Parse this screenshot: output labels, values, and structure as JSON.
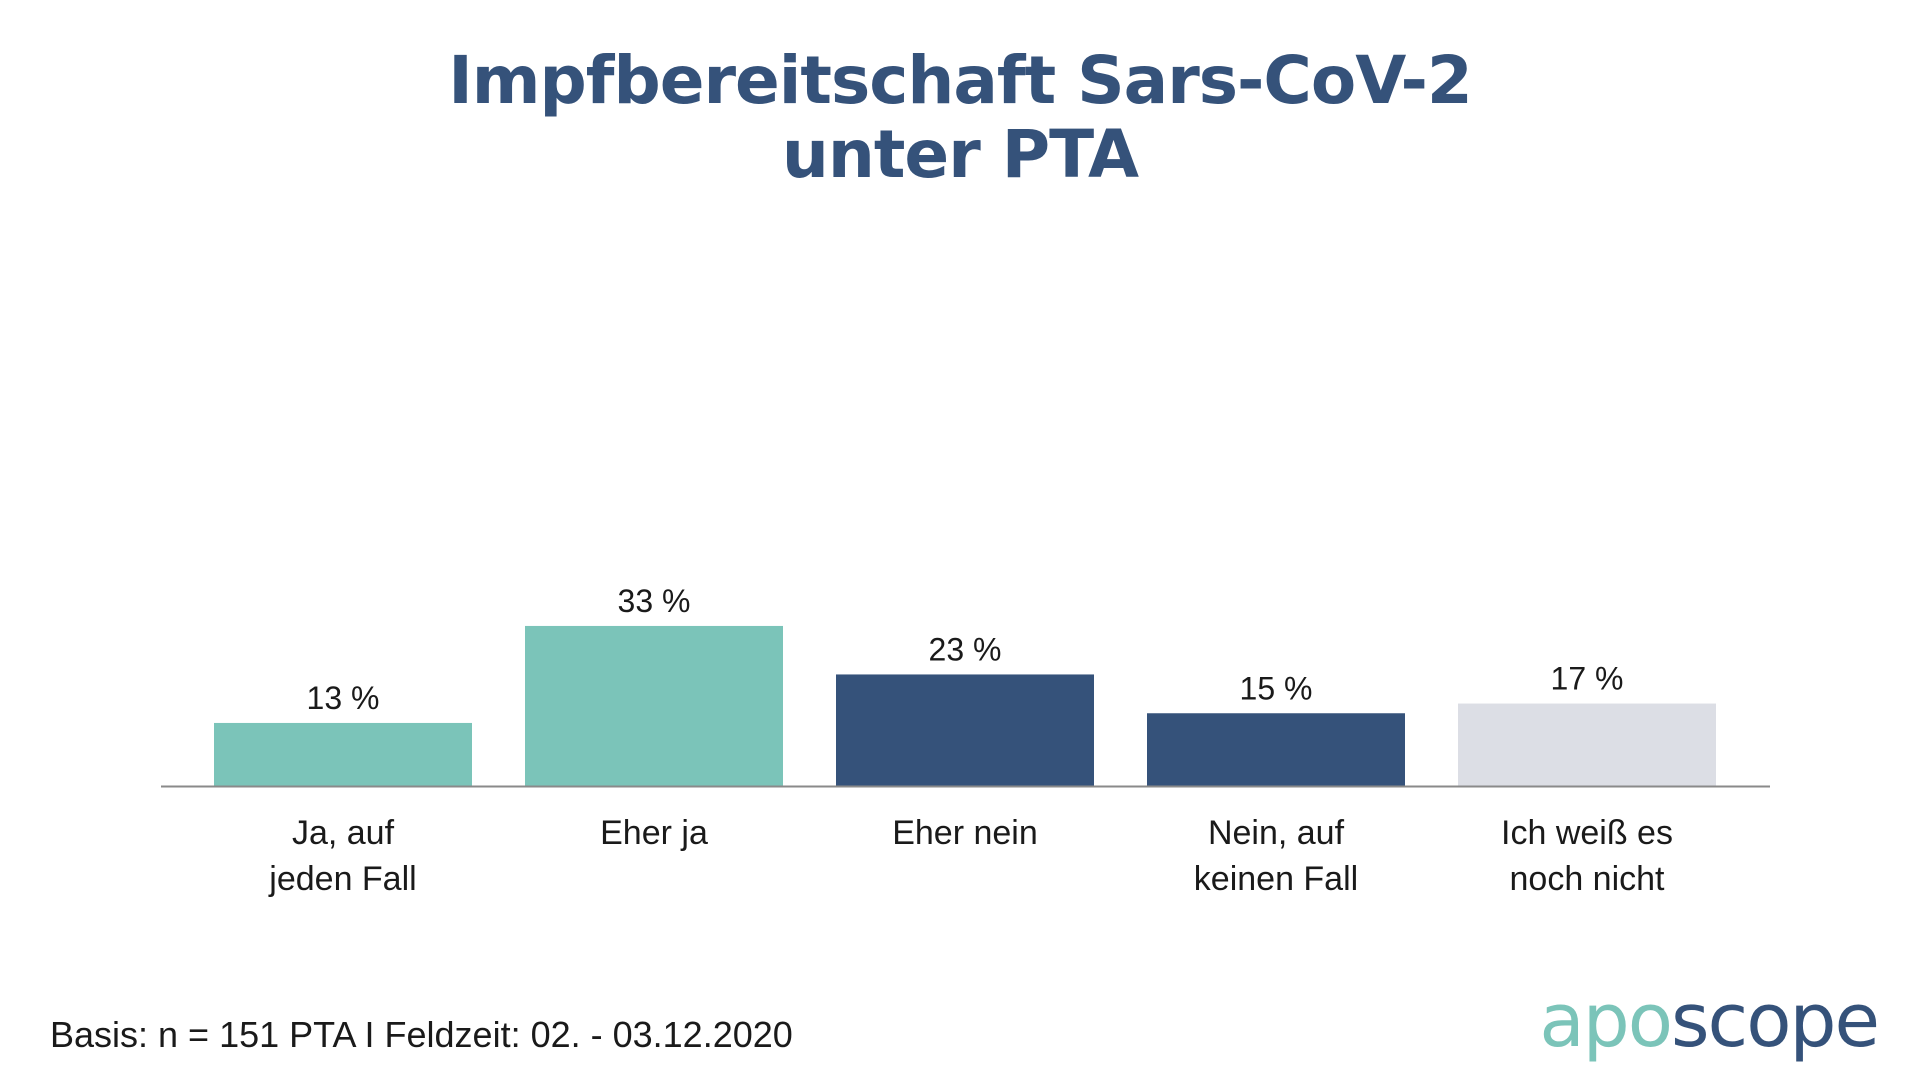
{
  "title": {
    "line1": "Impfbereitschaft Sars-CoV-2",
    "line2": "unter PTA"
  },
  "chart_data": {
    "type": "bar",
    "title": "Impfbereitschaft Sars-CoV-2 unter PTA",
    "xlabel": "",
    "ylabel": "",
    "ylim": [
      0,
      100
    ],
    "grid": false,
    "categories": [
      [
        "Ja, auf",
        "jeden Fall"
      ],
      [
        "Eher ja"
      ],
      [
        "Eher nein"
      ],
      [
        "Nein, auf",
        "keinen Fall"
      ],
      [
        "Ich weiß es",
        "noch nicht"
      ]
    ],
    "values": [
      13,
      33,
      23,
      15,
      17
    ],
    "labels": [
      "13 %",
      "33 %",
      "23 %",
      "15 %",
      "17 %"
    ],
    "colors": [
      "#7bc4b9",
      "#7bc4b9",
      "#35527a",
      "#35527a",
      "#dcdee5"
    ]
  },
  "footnote": "Basis: n = 151 PTA I Feldzeit: 02. - 03.12.2020",
  "logo": {
    "part1": "apo",
    "part2": "scope",
    "color1": "#7bc4b9",
    "color2": "#35527a"
  }
}
